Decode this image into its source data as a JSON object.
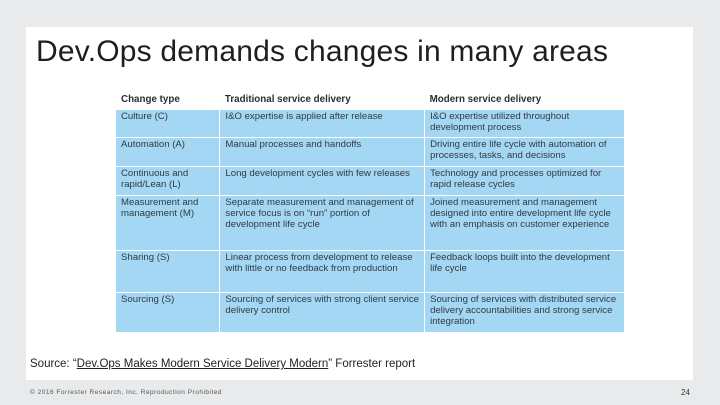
{
  "slide": {
    "title": "Dev.Ops demands changes in many areas",
    "source_prefix": "Source: “",
    "source_link": "Dev.Ops Makes Modern Service Delivery Modern",
    "source_suffix": "” Forrester report",
    "footer": "© 2016 Forrester Research, Inc. Reproduction Prohibited",
    "page_number": "24"
  },
  "table": {
    "headers": [
      "Change type",
      "Traditional service delivery",
      "Modern service delivery"
    ],
    "rows": [
      {
        "type": "Culture (C)",
        "traditional": "I&O expertise is applied after release",
        "modern": "I&O expertise utilized throughout development process"
      },
      {
        "type": "Automation (A)",
        "traditional": "Manual processes and handoffs",
        "modern": "Driving entire life cycle with automation of processes, tasks, and decisions"
      },
      {
        "type": "Continuous and rapid/Lean (L)",
        "traditional": "Long development cycles with few releases",
        "modern": "Technology and processes optimized for rapid release cycles"
      },
      {
        "type": "Measurement and management (M)",
        "traditional": "Separate measurement and management of service focus is on “run” portion of development life cycle",
        "modern": "Joined measurement and management designed into entire development life cycle with an emphasis on customer experience"
      },
      {
        "type": "Sharing (S)",
        "traditional": "Linear process from development to release with little or no feedback from production",
        "modern": "Feedback loops built into the development life cycle"
      },
      {
        "type": "Sourcing (S)",
        "traditional": "Sourcing of services with strong client service delivery control",
        "modern": "Sourcing of services with distributed service delivery accountabilities and strong service integration"
      }
    ]
  }
}
